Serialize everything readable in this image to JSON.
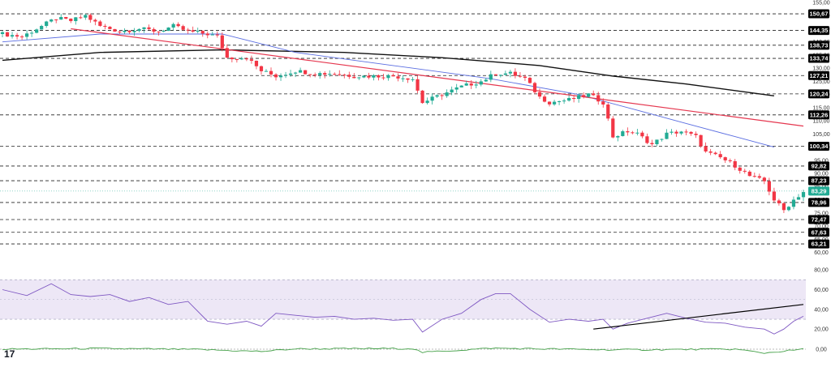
{
  "logo": {
    "text": "17"
  },
  "colors": {
    "up": "#22ab94",
    "down": "#f23645",
    "ma_short": "#5b6ee1",
    "ma_long": "#111111",
    "trend_red": "#e5374f",
    "rsi": "#7e57c2",
    "rsi_band": "#ede7f6",
    "badge": "#000000",
    "current_badge": "#22ab94",
    "osc": "#43a047"
  },
  "chart_data": [
    {
      "type": "candlestick",
      "title": "",
      "ylim": [
        58,
        155
      ],
      "price_ticks": [
        "155,00",
        "150,00",
        "145,00",
        "140,00",
        "135,00",
        "130,00",
        "125,00",
        "120,00",
        "115,00",
        "110,00",
        "105,00",
        "100,00",
        "95,00",
        "90,00",
        "85,00",
        "80,00",
        "75,00",
        "70,00",
        "65,00",
        "60,00"
      ],
      "levels": [
        {
          "value": 150.67,
          "label": "150,67"
        },
        {
          "value": 144.35,
          "label": "144,35"
        },
        {
          "value": 138.73,
          "label": "138,73"
        },
        {
          "value": 133.74,
          "label": "133,74"
        },
        {
          "value": 127.21,
          "label": "127,21"
        },
        {
          "value": 120.24,
          "label": "120,24"
        },
        {
          "value": 112.26,
          "label": "112,26"
        },
        {
          "value": 100.34,
          "label": "100,34"
        },
        {
          "value": 92.82,
          "label": "92,82"
        },
        {
          "value": 87.23,
          "label": "87,23"
        },
        {
          "value": 78.96,
          "label": "78,96"
        },
        {
          "value": 72.47,
          "label": "72,47"
        },
        {
          "value": 67.63,
          "label": "67,63"
        },
        {
          "value": 63.21,
          "label": "63,21"
        }
      ],
      "current": {
        "value": 83.29,
        "label": "83,29"
      },
      "anchors": [
        [
          0,
          143
        ],
        [
          4,
          142
        ],
        [
          8,
          146
        ],
        [
          11,
          149
        ],
        [
          14,
          148
        ],
        [
          17,
          150
        ],
        [
          20,
          146
        ],
        [
          24,
          144
        ],
        [
          28,
          145
        ],
        [
          32,
          144
        ],
        [
          35,
          146
        ],
        [
          38,
          144
        ],
        [
          42,
          143
        ],
        [
          44,
          142
        ],
        [
          46,
          134
        ],
        [
          50,
          134
        ],
        [
          53,
          129
        ],
        [
          56,
          127
        ],
        [
          60,
          129
        ],
        [
          64,
          128
        ],
        [
          68,
          128
        ],
        [
          72,
          127
        ],
        [
          76,
          127
        ],
        [
          80,
          127
        ],
        [
          84,
          126
        ],
        [
          86,
          117
        ],
        [
          90,
          120
        ],
        [
          94,
          123
        ],
        [
          98,
          125
        ],
        [
          101,
          128
        ],
        [
          104,
          128
        ],
        [
          107,
          126
        ],
        [
          110,
          119
        ],
        [
          112,
          117
        ],
        [
          116,
          118
        ],
        [
          120,
          120
        ],
        [
          123,
          117
        ],
        [
          125,
          104
        ],
        [
          128,
          106
        ],
        [
          130,
          105
        ],
        [
          133,
          101
        ],
        [
          136,
          105
        ],
        [
          139,
          106
        ],
        [
          142,
          104
        ],
        [
          144,
          98
        ],
        [
          147,
          96
        ],
        [
          150,
          93
        ],
        [
          153,
          89
        ],
        [
          156,
          87
        ],
        [
          158,
          80
        ],
        [
          160,
          76
        ],
        [
          162,
          80
        ],
        [
          164,
          83
        ]
      ],
      "ma_short": [
        [
          0,
          140
        ],
        [
          20,
          143
        ],
        [
          45,
          143
        ],
        [
          60,
          136
        ],
        [
          80,
          131
        ],
        [
          100,
          126
        ],
        [
          118,
          120
        ],
        [
          130,
          114
        ],
        [
          140,
          109
        ],
        [
          150,
          104
        ],
        [
          158,
          100
        ]
      ],
      "ma_long": [
        [
          0,
          133
        ],
        [
          20,
          136
        ],
        [
          45,
          137
        ],
        [
          70,
          136
        ],
        [
          90,
          134
        ],
        [
          110,
          131
        ],
        [
          125,
          127
        ],
        [
          140,
          124
        ],
        [
          158,
          119.5
        ]
      ],
      "trend_line": [
        [
          14,
          145
        ],
        [
          164,
          108
        ]
      ]
    },
    {
      "type": "line",
      "title": "",
      "ylim": [
        12,
        85
      ],
      "ticks": [
        "80,00",
        "60,00",
        "40,00",
        "20,00"
      ],
      "band": [
        30,
        70
      ],
      "rsi": [
        [
          0,
          60
        ],
        [
          5,
          54
        ],
        [
          10,
          66
        ],
        [
          14,
          55
        ],
        [
          18,
          53
        ],
        [
          22,
          55
        ],
        [
          26,
          48
        ],
        [
          30,
          52
        ],
        [
          34,
          45
        ],
        [
          38,
          48
        ],
        [
          42,
          28
        ],
        [
          46,
          25
        ],
        [
          50,
          28
        ],
        [
          53,
          23
        ],
        [
          56,
          36
        ],
        [
          60,
          34
        ],
        [
          64,
          32
        ],
        [
          68,
          33
        ],
        [
          72,
          30
        ],
        [
          76,
          31
        ],
        [
          80,
          29
        ],
        [
          84,
          30
        ],
        [
          86,
          17
        ],
        [
          90,
          30
        ],
        [
          94,
          36
        ],
        [
          98,
          50
        ],
        [
          101,
          56
        ],
        [
          104,
          56
        ],
        [
          108,
          40
        ],
        [
          112,
          27
        ],
        [
          116,
          30
        ],
        [
          120,
          28
        ],
        [
          123,
          30
        ],
        [
          125,
          20
        ],
        [
          128,
          26
        ],
        [
          132,
          31
        ],
        [
          136,
          36
        ],
        [
          140,
          31
        ],
        [
          144,
          27
        ],
        [
          148,
          26
        ],
        [
          152,
          22
        ],
        [
          156,
          20
        ],
        [
          158,
          15
        ],
        [
          160,
          20
        ],
        [
          162,
          28
        ],
        [
          164,
          33
        ]
      ],
      "trend_line": [
        [
          121,
          20
        ],
        [
          164,
          45
        ]
      ]
    },
    {
      "type": "line",
      "title": "",
      "ticks": [
        "0,00"
      ],
      "values": [
        [
          0,
          0
        ],
        [
          20,
          0.2
        ],
        [
          40,
          -0.1
        ],
        [
          53,
          -0.7
        ],
        [
          60,
          0.1
        ],
        [
          84,
          0.2
        ],
        [
          86,
          -1
        ],
        [
          100,
          0.3
        ],
        [
          125,
          -0.2
        ],
        [
          150,
          0
        ],
        [
          156,
          -1.2
        ],
        [
          164,
          0
        ]
      ]
    }
  ]
}
